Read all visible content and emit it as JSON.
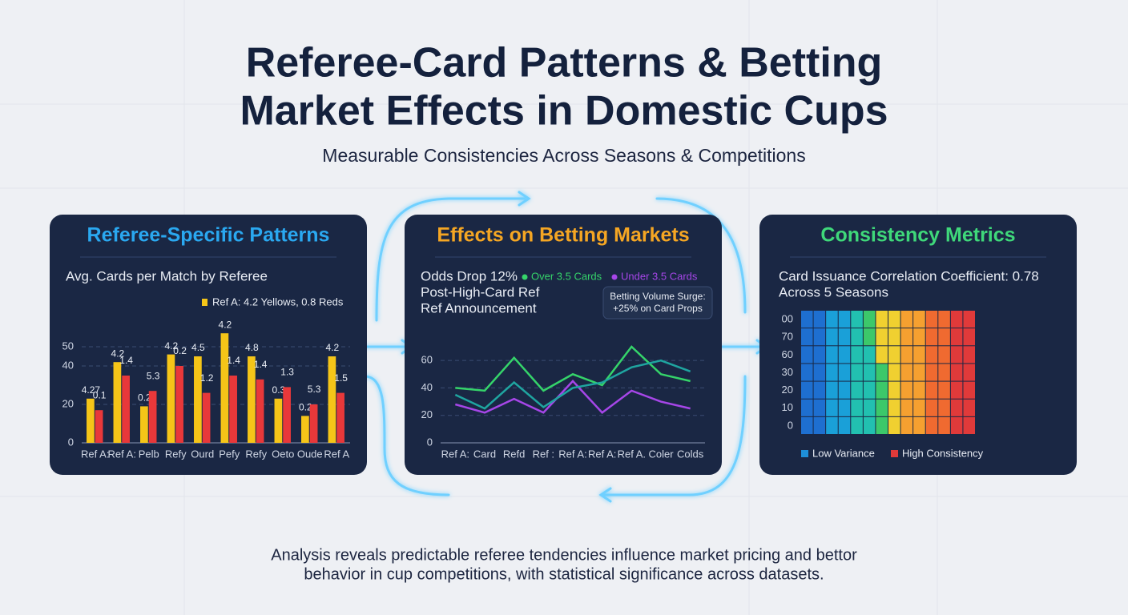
{
  "title": [
    "Referee-Card Patterns & Betting",
    "Market Effects in Domestic Cups"
  ],
  "subtitle": "Measurable Consistencies Across Seasons & Competitions",
  "footer": [
    "Analysis reveals predictable referee tendencies influence market pricing and bettor",
    "behavior in cup competitions, with statistical significance across datasets."
  ],
  "chart_data": [
    {
      "type": "bar",
      "title": "Referee-Specific Patterns",
      "title_color": "#2aa8f0",
      "subtitle": "Avg. Cards per Match by Referee",
      "annotation": "Ref A: 4.2 Yellows, 0.8 Reds",
      "categories": [
        "Ref A:",
        "Ref A:",
        "Pelb",
        "Refy",
        "Ourd",
        "Pefy",
        "Refy",
        "Oeto",
        "Oude",
        "Ref A"
      ],
      "series": [
        {
          "color": "#f5c518",
          "values": [
            23,
            42,
            19,
            46,
            45,
            57,
            45,
            23,
            14,
            45
          ],
          "annotations": [
            "4.27",
            "4.2",
            "0.2",
            "4.2",
            "4.5",
            "4.2",
            "4.8",
            "0.3",
            "0.2",
            "4.2"
          ]
        },
        {
          "color": "#e8383a",
          "values": [
            17,
            35,
            27,
            40,
            26,
            35,
            33,
            29,
            20,
            26
          ],
          "annotations": [
            "0.1",
            "1.4",
            "5.3",
            "0.2",
            "1.2",
            "1.4",
            "1.4",
            "1.3",
            "5.3",
            "1.5"
          ]
        }
      ],
      "ylim": [
        0,
        60
      ],
      "yticks": [
        0,
        20,
        40,
        50
      ],
      "grid": true
    },
    {
      "type": "line",
      "title": "Effects on Betting Markets",
      "title_color": "#f5a623",
      "subtitle": [
        "Odds Drop 12%",
        "Post-High-Card Ref",
        "Ref Announcement"
      ],
      "callout": [
        "Betting Volume Surge:",
        "+25% on Card Props"
      ],
      "categories": [
        "Ref A:",
        "Card",
        "Refd",
        "Ref :",
        "Ref A:",
        "Ref A:",
        "Ref A.",
        "Coler",
        "Colds"
      ],
      "series": [
        {
          "name": "Over 3.5 Cards",
          "color": "#35d46a",
          "values": [
            40,
            38,
            62,
            38,
            50,
            42,
            70,
            50,
            45
          ]
        },
        {
          "name": "Under 3.5 Cards",
          "color": "#a646e8",
          "values": [
            28,
            22,
            32,
            22,
            45,
            22,
            38,
            30,
            25
          ]
        },
        {
          "color": "#1fa5a0",
          "values": [
            35,
            25,
            44,
            26,
            40,
            44,
            55,
            60,
            52
          ]
        }
      ],
      "ylim": [
        0,
        70
      ],
      "yticks": [
        0,
        20,
        40,
        60
      ],
      "grid": true
    },
    {
      "type": "heatmap",
      "title": "Consistency Metrics",
      "title_color": "#3fd87a",
      "subtitle": [
        "Card Issuance Correlation Coefficient: 0.78",
        "Across 5 Seasons"
      ],
      "y_labels": [
        "00",
        "70",
        "60",
        "30",
        "20",
        "10",
        "0"
      ],
      "values": [
        [
          10,
          15,
          20,
          25,
          30,
          38,
          45,
          50,
          55,
          60,
          65,
          70,
          75,
          80
        ],
        [
          10,
          15,
          20,
          25,
          30,
          38,
          45,
          50,
          55,
          60,
          65,
          70,
          75,
          80
        ],
        [
          10,
          15,
          20,
          25,
          30,
          35,
          45,
          50,
          55,
          60,
          65,
          70,
          75,
          80
        ],
        [
          10,
          15,
          20,
          25,
          30,
          35,
          40,
          50,
          55,
          60,
          65,
          70,
          75,
          80
        ],
        [
          10,
          15,
          20,
          25,
          30,
          35,
          40,
          50,
          55,
          60,
          65,
          70,
          75,
          80
        ],
        [
          10,
          15,
          20,
          25,
          30,
          35,
          40,
          45,
          55,
          60,
          65,
          70,
          75,
          80
        ],
        [
          10,
          15,
          20,
          25,
          30,
          35,
          40,
          45,
          55,
          60,
          65,
          70,
          75,
          80
        ]
      ],
      "zlim": [
        10,
        80
      ],
      "colorscale": [
        "#1e6fd0",
        "#1aa0d8",
        "#22c0b0",
        "#3cc86a",
        "#f0d030",
        "#f5a030",
        "#f06a30",
        "#e03a3a"
      ],
      "legend": [
        {
          "name": "Low Variance",
          "color": "#1e8fd8"
        },
        {
          "name": "High Consistency",
          "color": "#e03a3a"
        }
      ]
    }
  ]
}
